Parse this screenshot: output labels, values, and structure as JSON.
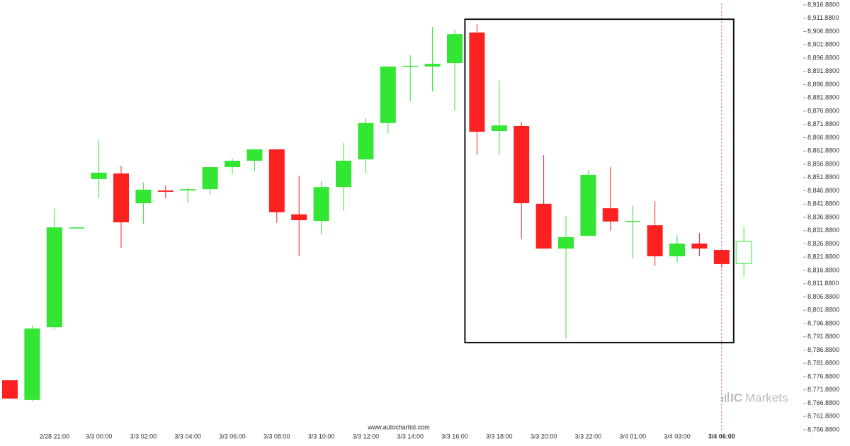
{
  "chart_data": {
    "type": "candlestick",
    "categories": [
      null,
      null,
      "2/28 21:00",
      null,
      "3/3 00:00",
      null,
      "3/3 02:00",
      null,
      "3/3 04:00",
      null,
      "3/3 06:00",
      null,
      "3/3 08:00",
      null,
      "3/3 10:00",
      null,
      "3/3 12:00",
      null,
      "3/3 14:00",
      null,
      "3/3 16:00",
      null,
      "3/3 18:00",
      null,
      "3/3 20:00",
      null,
      "3/3 22:00",
      null,
      "3/4 01:00",
      null,
      "3/4 03:00",
      null,
      "3/4 06:00",
      null
    ],
    "open": [
      8775.5,
      8768.1,
      8795.5,
      8833.1,
      8851.3,
      8853.4,
      8842.2,
      8847.0,
      8847.0,
      8847.5,
      8855.8,
      8858.2,
      8862.5,
      8838.0,
      8835.5,
      8848.3,
      8858.7,
      8872.4,
      8893.7,
      8893.7,
      8895.0,
      8906.5,
      8869.4,
      8871.3,
      8842.0,
      8825.1,
      8829.9,
      8840.3,
      8835.3,
      8833.9,
      8822.2,
      8827.0,
      8824.6,
      8819.5
    ],
    "high": [
      8775.5,
      8796.1,
      8840.1,
      8833.1,
      8865.9,
      8856.3,
      8850.0,
      8848.9,
      8848.1,
      8855.8,
      8859.0,
      8862.5,
      8862.5,
      8852.6,
      8850.5,
      8864.9,
      8874.2,
      8893.7,
      8897.9,
      8908.6,
      8907.5,
      8909.7,
      8888.4,
      8872.9,
      8860.3,
      8837.4,
      8854.5,
      8855.8,
      8841.4,
      8843.0,
      8830.2,
      8831.0,
      8824.6,
      8833.4
    ],
    "low": [
      8768.6,
      8767.5,
      8794.5,
      8833.1,
      8844.1,
      8825.4,
      8834.5,
      8844.1,
      8842.2,
      8845.4,
      8853.1,
      8854.2,
      8834.8,
      8822.2,
      8830.5,
      8839.3,
      8853.4,
      8868.3,
      8880.6,
      8884.3,
      8877.1,
      8860.3,
      8860.3,
      8828.6,
      8825.1,
      8791.3,
      8829.9,
      8831.8,
      8821.4,
      8818.5,
      8819.8,
      8822.2,
      8817.9,
      8814.5
    ],
    "close": [
      8768.6,
      8795.0,
      8833.1,
      8833.1,
      8853.7,
      8835.0,
      8847.3,
      8846.5,
      8847.5,
      8855.8,
      8858.2,
      8862.5,
      8838.8,
      8835.8,
      8848.3,
      8858.2,
      8872.4,
      8893.7,
      8894.0,
      8894.7,
      8905.9,
      8869.1,
      8871.5,
      8842.2,
      8825.1,
      8829.4,
      8852.9,
      8835.3,
      8835.5,
      8822.2,
      8827.0,
      8825.1,
      8819.3,
      8827.8
    ],
    "up_color": "#33e633",
    "down_color": "#fc2121",
    "pattern_box": {
      "high": 8911.5,
      "low": 8789.7
    },
    "ylim": [
      8756.88,
      8916.88
    ],
    "yticks": [
      {
        "value": 8756.88,
        "label": "8,756.8800"
      },
      {
        "value": 8761.88,
        "label": "8,761.8800"
      },
      {
        "value": 8766.88,
        "label": "8,766.8800"
      },
      {
        "value": 8771.88,
        "label": "8,771.8800"
      },
      {
        "value": 8776.88,
        "label": "8,776.8800"
      },
      {
        "value": 8781.88,
        "label": "8,781.8800"
      },
      {
        "value": 8786.88,
        "label": "8,786.8800"
      },
      {
        "value": 8791.88,
        "label": "8,791.8800"
      },
      {
        "value": 8796.88,
        "label": "8,796.8800"
      },
      {
        "value": 8801.88,
        "label": "8,801.8800"
      },
      {
        "value": 8806.88,
        "label": "8,806.8800"
      },
      {
        "value": 8811.88,
        "label": "8,811.8800"
      },
      {
        "value": 8816.88,
        "label": "8,816.8800"
      },
      {
        "value": 8821.88,
        "label": "8,821.8800"
      },
      {
        "value": 8826.88,
        "label": "8,826.8800"
      },
      {
        "value": 8831.88,
        "label": "8,831.8800"
      },
      {
        "value": 8836.88,
        "label": "8,836.8800"
      },
      {
        "value": 8841.88,
        "label": "8,841.8800"
      },
      {
        "value": 8846.88,
        "label": "8,846.8800"
      },
      {
        "value": 8851.88,
        "label": "8,851.8800"
      },
      {
        "value": 8856.88,
        "label": "8,856.8800"
      },
      {
        "value": 8861.88,
        "label": "8,861.8800"
      },
      {
        "value": 8866.88,
        "label": "8,866.8800"
      },
      {
        "value": 8871.88,
        "label": "8,871.8800"
      },
      {
        "value": 8876.88,
        "label": "8,876.8800"
      },
      {
        "value": 8881.88,
        "label": "8,881.8800"
      },
      {
        "value": 8886.88,
        "label": "8,886.8800"
      },
      {
        "value": 8891.88,
        "label": "8,891.8800"
      },
      {
        "value": 8896.88,
        "label": "8,896.8800"
      },
      {
        "value": 8901.88,
        "label": "8,901.8800"
      },
      {
        "value": 8906.88,
        "label": "8,906.8800"
      },
      {
        "value": 8911.88,
        "label": "8,911.8800"
      },
      {
        "value": 8916.88,
        "label": "8,916.8800"
      }
    ],
    "watermark": "www.autochartist.com",
    "brand_prefix": "IC",
    "brand": "Markets"
  }
}
